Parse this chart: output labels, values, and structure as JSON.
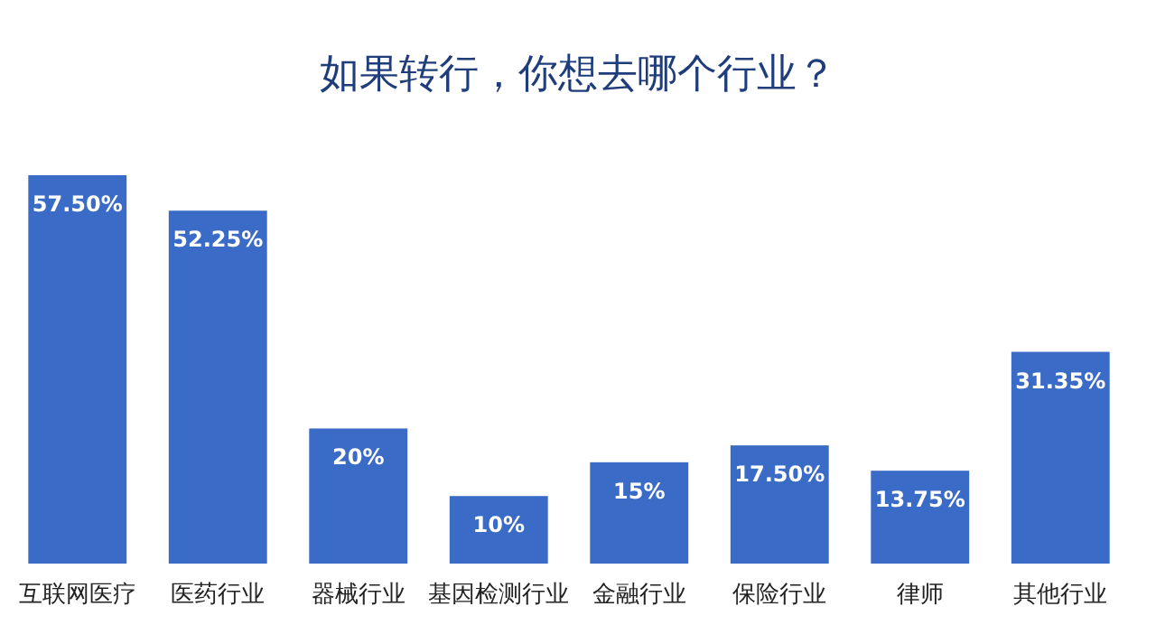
{
  "chart_data": {
    "type": "bar",
    "title": "如果转行，你想去哪个行业？",
    "categories": [
      "互联网医疗",
      "医药行业",
      "器械行业",
      "基因检测行业",
      "金融行业",
      "保险行业",
      "律师",
      "其他行业"
    ],
    "values": [
      57.5,
      52.25,
      20,
      10,
      15,
      17.5,
      13.75,
      31.35
    ],
    "value_labels": [
      "57.50%",
      "52.25%",
      "20%",
      "10%",
      "15%",
      "17.50%",
      "13.75%",
      "31.35%"
    ],
    "color": "#3a6bc6"
  }
}
